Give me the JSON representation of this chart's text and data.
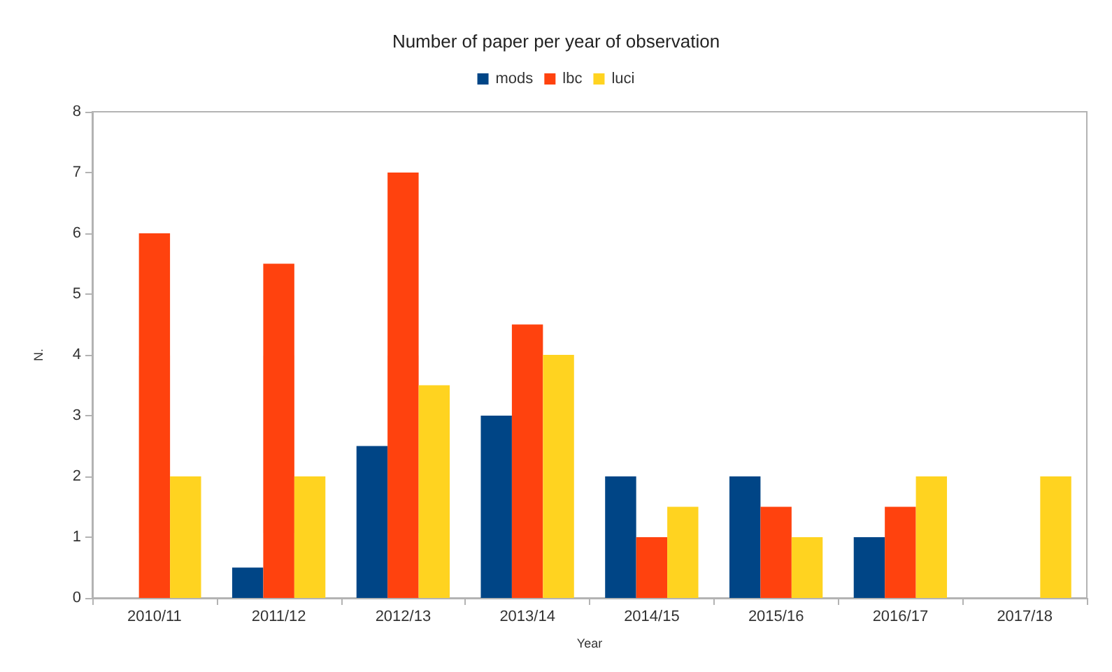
{
  "chart_data": {
    "type": "bar",
    "title": "Number of paper per year of observation",
    "xlabel": "Year",
    "ylabel": "N.",
    "categories": [
      "2010/11",
      "2011/12",
      "2012/13",
      "2013/14",
      "2014/15",
      "2015/16",
      "2016/17",
      "2017/18"
    ],
    "series": [
      {
        "name": "mods",
        "color": "#004586",
        "values": [
          0,
          0.5,
          2.5,
          3,
          2,
          2,
          1,
          0
        ]
      },
      {
        "name": "lbc",
        "color": "#ff420e",
        "values": [
          6,
          5.5,
          7,
          4.5,
          1,
          1.5,
          1.5,
          0
        ]
      },
      {
        "name": "luci",
        "color": "#ffd320",
        "values": [
          2,
          2,
          3.5,
          4,
          1.5,
          1,
          2,
          2
        ]
      }
    ],
    "ylim": [
      0,
      8
    ],
    "yticks": [
      0,
      1,
      2,
      3,
      4,
      5,
      6,
      7,
      8
    ],
    "grid": false,
    "legend": "top"
  }
}
